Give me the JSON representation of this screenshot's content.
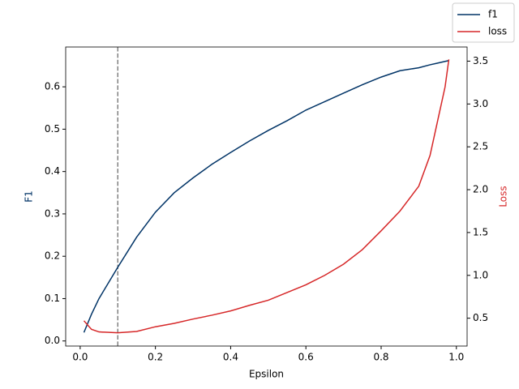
{
  "chart_data": {
    "type": "line",
    "x_label": "Epsilon",
    "y_label": "F1",
    "y2_label": "Loss",
    "x": [
      0.01,
      0.03,
      0.05,
      0.1,
      0.15,
      0.2,
      0.25,
      0.3,
      0.35,
      0.4,
      0.45,
      0.5,
      0.55,
      0.6,
      0.65,
      0.7,
      0.75,
      0.8,
      0.85,
      0.9,
      0.93,
      0.95,
      0.97,
      0.98
    ],
    "series": [
      {
        "name": "f1",
        "color": "#003366",
        "values": [
          0.02,
          0.063,
          0.1,
          0.174,
          0.245,
          0.304,
          0.35,
          0.385,
          0.417,
          0.445,
          0.472,
          0.497,
          0.52,
          0.545,
          0.565,
          0.585,
          0.605,
          0.623,
          0.638,
          0.645,
          0.652,
          0.656,
          0.66,
          0.662
        ]
      },
      {
        "name": "loss",
        "color": "#d62728",
        "axis": "y2",
        "values": [
          0.47,
          0.37,
          0.34,
          0.33,
          0.345,
          0.4,
          0.44,
          0.49,
          0.535,
          0.585,
          0.65,
          0.71,
          0.8,
          0.89,
          1.0,
          1.13,
          1.3,
          1.52,
          1.75,
          2.04,
          2.4,
          2.8,
          3.2,
          3.52
        ]
      }
    ],
    "vline": {
      "x": 0.1,
      "color": "#808080"
    },
    "xlim": [
      -0.0385,
      1.0285
    ],
    "xticks": [
      {
        "value": 0,
        "label": "0.0"
      },
      0.2,
      0.4,
      0.6,
      0.8,
      {
        "value": 1,
        "label": "1.0"
      }
    ],
    "ylim": [
      -0.012,
      0.694
    ],
    "yticks": [
      {
        "value": 0,
        "label": "0.0"
      },
      0.1,
      0.2,
      0.3,
      0.4,
      0.5,
      0.6
    ],
    "y2lim": [
      0.175,
      3.665
    ],
    "y2ticks": [
      0.5,
      {
        "value": 1,
        "label": "1.0"
      },
      1.5,
      {
        "value": 2,
        "label": "2.0"
      },
      2.5,
      {
        "value": 3,
        "label": "3.0"
      },
      3.5
    ],
    "legend": "upper right",
    "grid": false
  }
}
